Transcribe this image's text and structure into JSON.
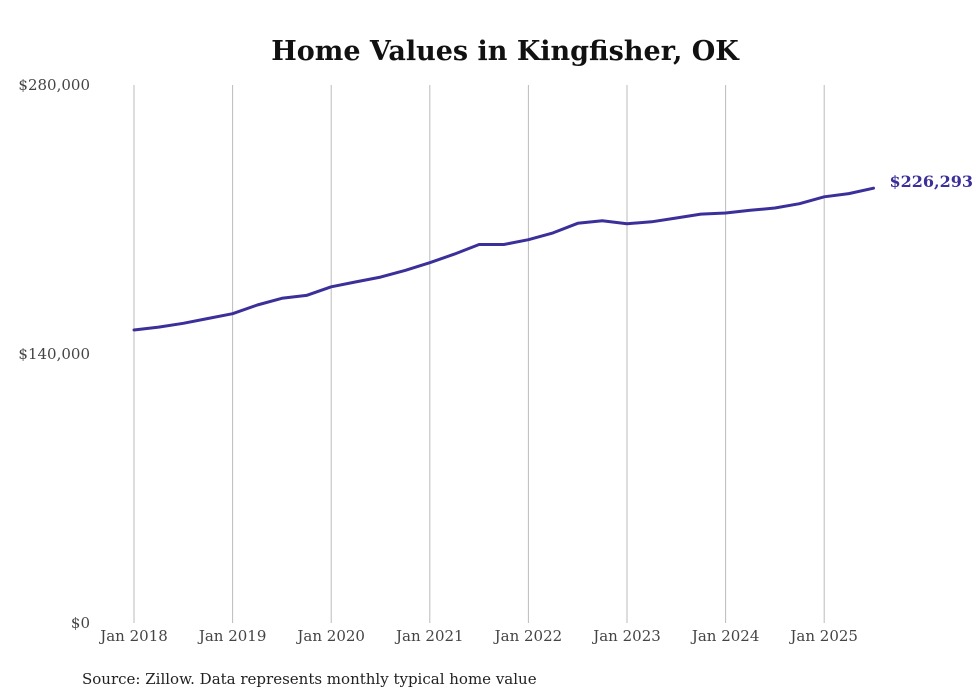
{
  "chart_data": {
    "type": "line",
    "title": "Home Values in Kingfisher, OK",
    "xlabel": "",
    "ylabel": "",
    "ylim": [
      0,
      280000
    ],
    "y_ticks": [
      0,
      140000,
      280000
    ],
    "y_tick_labels": [
      "$0",
      "$140,000",
      "$280,000"
    ],
    "x_tick_labels": [
      "Jan 2018",
      "Jan 2019",
      "Jan 2020",
      "Jan 2021",
      "Jan 2022",
      "Jan 2023",
      "Jan 2024",
      "Jan 2025"
    ],
    "x_range": [
      2018.0,
      2025.5
    ],
    "grid": "vertical",
    "series": [
      {
        "name": "Typical home value",
        "color": "#3b2f9a",
        "x": [
          2018.0,
          2018.25,
          2018.5,
          2018.75,
          2019.0,
          2019.25,
          2019.5,
          2019.75,
          2020.0,
          2020.25,
          2020.5,
          2020.75,
          2021.0,
          2021.25,
          2021.5,
          2021.75,
          2022.0,
          2022.25,
          2022.5,
          2022.75,
          2023.0,
          2023.25,
          2023.5,
          2023.75,
          2024.0,
          2024.25,
          2024.5,
          2024.75,
          2025.0,
          2025.25,
          2025.5
        ],
        "values": [
          152500,
          154000,
          156000,
          158500,
          161000,
          165500,
          169000,
          170500,
          175000,
          177500,
          180000,
          183500,
          187500,
          192000,
          197000,
          197000,
          199500,
          203000,
          208000,
          209300,
          207800,
          208800,
          210800,
          212800,
          213400,
          214800,
          216000,
          218200,
          221800,
          223500,
          226293
        ]
      }
    ],
    "end_label": "$226,293",
    "source": "Source: Zillow. Data represents monthly typical home value"
  }
}
